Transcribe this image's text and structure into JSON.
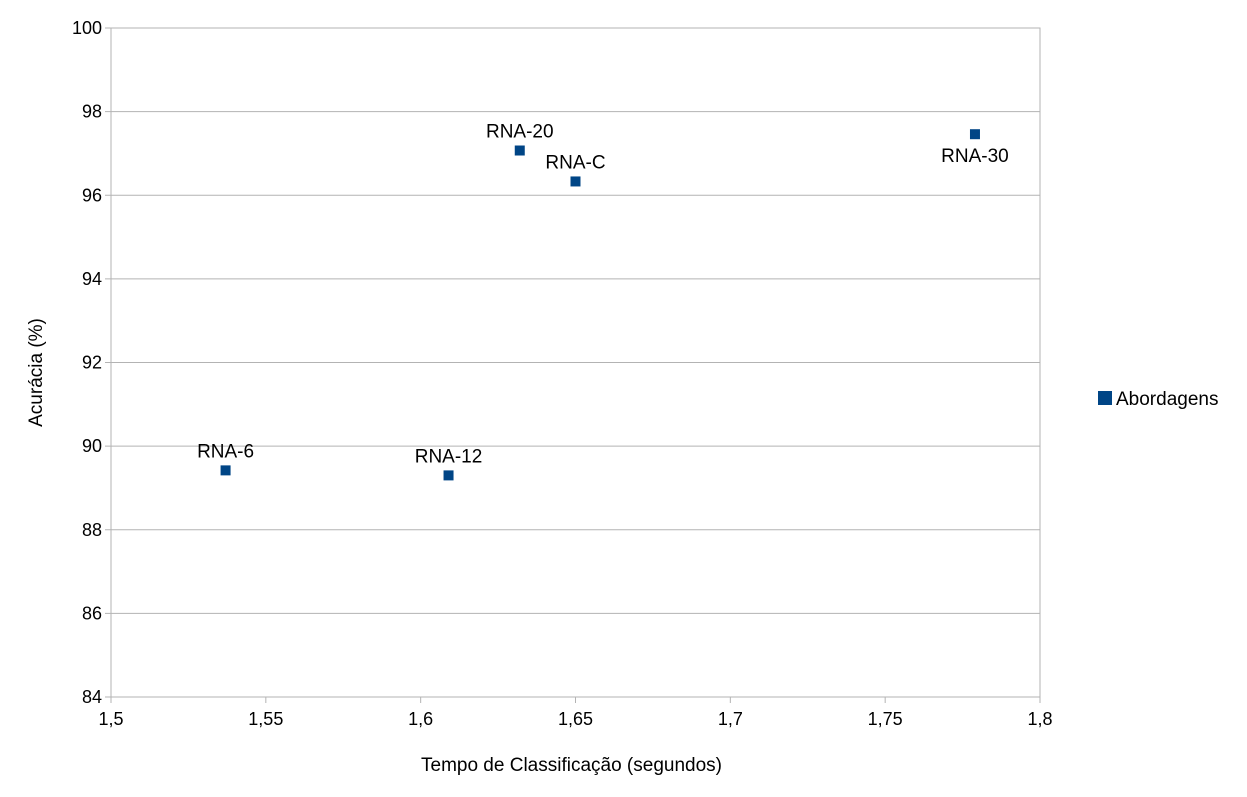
{
  "chart_data": {
    "type": "scatter",
    "title": "",
    "xlabel": "Tempo de Classificação (segundos)",
    "ylabel": "Acurácia (%)",
    "xlim": [
      1.5,
      1.8
    ],
    "ylim": [
      84,
      100
    ],
    "x_ticks": [
      1.5,
      1.55,
      1.6,
      1.65,
      1.7,
      1.75,
      1.8
    ],
    "x_tick_labels": [
      "1,5",
      "1,55",
      "1,6",
      "1,65",
      "1,7",
      "1,75",
      "1,8"
    ],
    "y_ticks": [
      84,
      86,
      88,
      90,
      92,
      94,
      96,
      98,
      100
    ],
    "y_tick_labels": [
      "84",
      "86",
      "88",
      "90",
      "92",
      "94",
      "96",
      "98",
      "100"
    ],
    "grid": "horizontal",
    "legend": {
      "position": "right",
      "entries": [
        "Abordagens"
      ]
    },
    "series": [
      {
        "name": "Abordagens",
        "color": "#004586",
        "marker": "square",
        "points": [
          {
            "label": "RNA-6",
            "x": 1.537,
            "y": 89.42,
            "label_pos": "above"
          },
          {
            "label": "RNA-12",
            "x": 1.609,
            "y": 89.3,
            "label_pos": "above"
          },
          {
            "label": "RNA-20",
            "x": 1.632,
            "y": 97.07,
            "label_pos": "above"
          },
          {
            "label": "RNA-C",
            "x": 1.65,
            "y": 96.33,
            "label_pos": "above"
          },
          {
            "label": "RNA-30",
            "x": 1.779,
            "y": 97.46,
            "label_pos": "below"
          }
        ]
      }
    ]
  }
}
